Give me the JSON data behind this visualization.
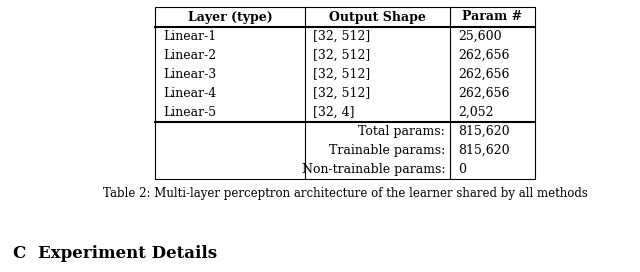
{
  "header": [
    "Layer (type)",
    "Output Shape",
    "Param #"
  ],
  "rows": [
    [
      "Linear-1",
      "[32, 512]",
      "25,600"
    ],
    [
      "Linear-2",
      "[32, 512]",
      "262,656"
    ],
    [
      "Linear-3",
      "[32, 512]",
      "262,656"
    ],
    [
      "Linear-4",
      "[32, 512]",
      "262,656"
    ],
    [
      "Linear-5",
      "[32, 4]",
      "2,052"
    ]
  ],
  "summary_rows": [
    [
      "Total params:",
      "815,620"
    ],
    [
      "Trainable params:",
      "815,620"
    ],
    [
      "Non-trainable params:",
      "0"
    ]
  ],
  "caption": "Table 2: Multi-layer perceptron architecture of the learner shared by all methods",
  "section_label": "C",
  "section_title": "Experiment Details",
  "bg_color": "#ffffff",
  "text_color": "#000000",
  "header_fontsize": 9.0,
  "body_fontsize": 9.0,
  "caption_fontsize": 8.5,
  "section_fontsize": 12.0
}
